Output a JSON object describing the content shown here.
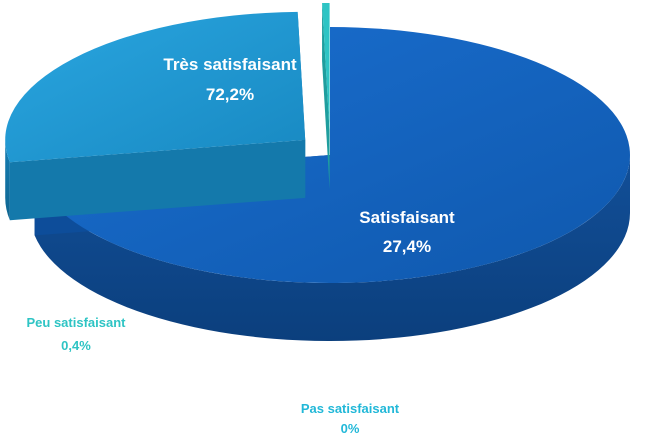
{
  "chart_data": {
    "type": "pie",
    "title": "",
    "slices": [
      {
        "label": "Très satisfaisant",
        "value": 72.2,
        "value_label": "72,2%",
        "color": "#1565c0",
        "side_color": "#0d4d9a"
      },
      {
        "label": "Satisfaisant",
        "value": 27.4,
        "value_label": "27,4%",
        "color": "#1e9ad6",
        "side_color": "#1479ab"
      },
      {
        "label": "Peu satisfaisant",
        "value": 0.4,
        "value_label": "0,4%",
        "color": "#2ec4c4",
        "side_color": "#1f9e9e"
      },
      {
        "label": "Pas satisfaisant",
        "value": 0,
        "value_label": "0%",
        "color": "#22b8d8",
        "side_color": "#1a95b0"
      }
    ],
    "exploded": [
      "Satisfaisant",
      "Peu satisfaisant"
    ],
    "legend": "none",
    "style": "3d"
  }
}
